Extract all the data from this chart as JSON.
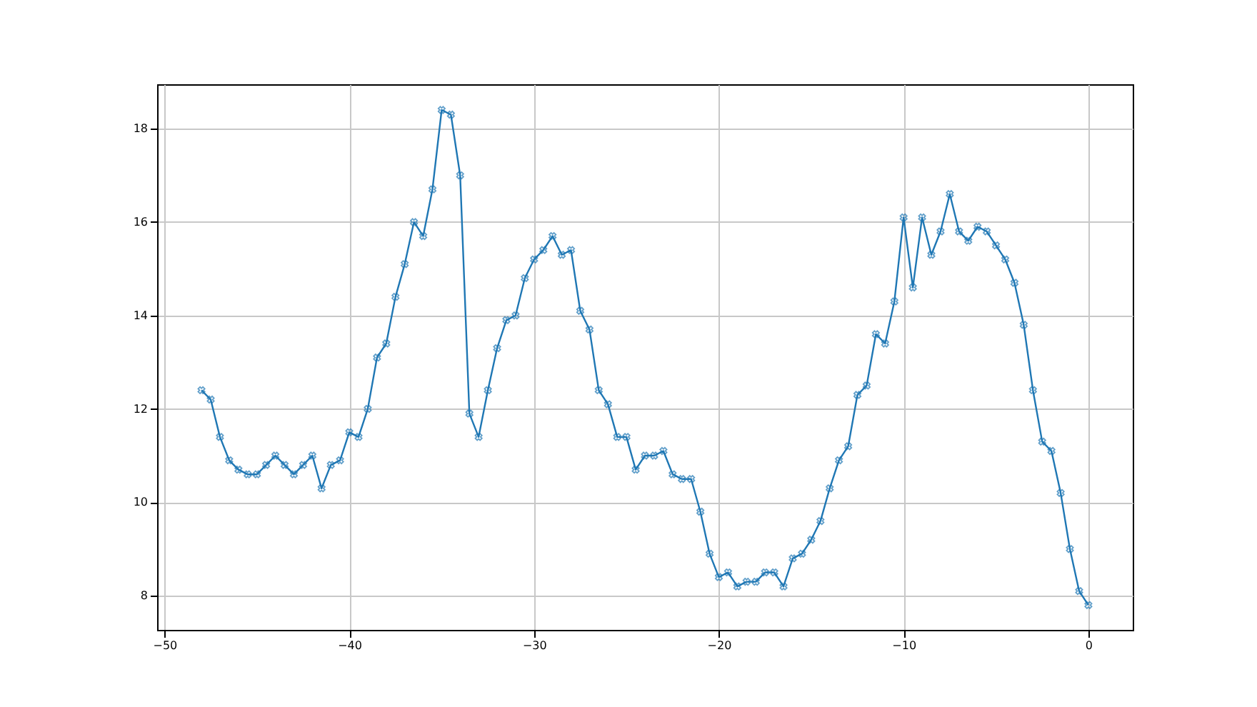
{
  "chart_data": {
    "type": "line",
    "x": [
      -48,
      -47.5,
      -47,
      -46.5,
      -46,
      -45.5,
      -45,
      -44.5,
      -44,
      -43.5,
      -43,
      -42.5,
      -42,
      -41.5,
      -41,
      -40.5,
      -40,
      -39.5,
      -39,
      -38.5,
      -38,
      -37.5,
      -37,
      -36.5,
      -36,
      -35.5,
      -35,
      -34.5,
      -34,
      -33.5,
      -33,
      -32.5,
      -32,
      -31.5,
      -31,
      -30.5,
      -30,
      -29.5,
      -29,
      -28.5,
      -28,
      -27.5,
      -27,
      -26.5,
      -26,
      -25.5,
      -25,
      -24.5,
      -24,
      -23.5,
      -23,
      -22.5,
      -22,
      -21.5,
      -21,
      -20.5,
      -20,
      -19.5,
      -19,
      -18.5,
      -18,
      -17.5,
      -17,
      -16.5,
      -16,
      -15.5,
      -15,
      -14.5,
      -14,
      -13.5,
      -13,
      -12.5,
      -12,
      -11.5,
      -11,
      -10.5,
      -10,
      -9.5,
      -9,
      -8.5,
      -8,
      -7.5,
      -7,
      -6.5,
      -6,
      -5.5,
      -5,
      -4.5,
      -4,
      -3.5,
      -3,
      -2.5,
      -2,
      -1.5,
      -1,
      -0.5,
      0
    ],
    "series": [
      {
        "color": "#1f77b4",
        "values": [
          12.4,
          12.2,
          11.4,
          10.9,
          10.7,
          10.6,
          10.6,
          10.8,
          11.0,
          10.8,
          10.6,
          10.8,
          11.0,
          10.3,
          10.8,
          10.9,
          11.5,
          11.4,
          12.0,
          13.1,
          13.4,
          14.4,
          15.1,
          16.0,
          15.7,
          16.7,
          18.4,
          18.3,
          17.0,
          11.9,
          11.4,
          12.4,
          13.3,
          13.9,
          14.0,
          14.8,
          15.2,
          15.4,
          15.7,
          15.3,
          15.4,
          14.1,
          13.7,
          12.4,
          12.1,
          11.4,
          11.4,
          10.7,
          11.0,
          11.0,
          11.1,
          10.6,
          10.5,
          10.5,
          9.8,
          8.9,
          8.4,
          8.5,
          8.2,
          8.3,
          8.3,
          8.5,
          8.5,
          8.2,
          8.8,
          8.9,
          9.2,
          9.6,
          10.3,
          10.9,
          11.2,
          12.3,
          12.5,
          13.6,
          13.4,
          14.3,
          16.1,
          14.6,
          16.1,
          15.3,
          15.8,
          16.6,
          15.8,
          15.6,
          15.9,
          15.8,
          15.5,
          15.2,
          14.7,
          13.8,
          12.4,
          11.3,
          11.1,
          10.2,
          9.0,
          8.1,
          7.8
        ]
      }
    ],
    "xlim": [
      -50.4,
      2.4
    ],
    "ylim": [
      7.27,
      18.95
    ],
    "xticks": [
      -50,
      -40,
      -30,
      -20,
      -10,
      0
    ],
    "yticks": [
      8,
      10,
      12,
      14,
      16,
      18
    ],
    "grid": true,
    "marker": "cross",
    "line_style": "solid"
  }
}
